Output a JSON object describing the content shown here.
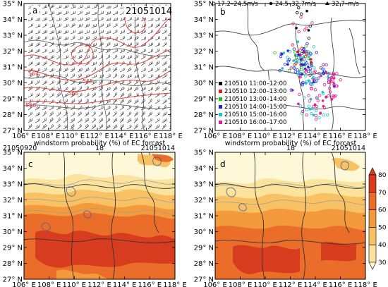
{
  "panel_a": {
    "label": "a",
    "date": "21051014",
    "contours": [
      "564",
      "565",
      "566",
      "566"
    ]
  },
  "panel_b": {
    "label": "b",
    "speed_legend": [
      "17.2–24.5m/s",
      "24.5–32.7m/s",
      "32.7–m/s"
    ],
    "time_legend": [
      {
        "text": "210510 11:00–12:00",
        "color": "#000000"
      },
      {
        "text": "210510 12:00–13:00",
        "color": "#e02020"
      },
      {
        "text": "210510 13:00–14:00",
        "color": "#20c020"
      },
      {
        "text": "210510 14:00–15:00",
        "color": "#2020e0"
      },
      {
        "text": "210510 15:00–16:00",
        "color": "#20c0d0"
      },
      {
        "text": "210510 16:00–17:00",
        "color": "#e02090"
      }
    ]
  },
  "panel_c": {
    "label": "c",
    "left_date": "21050920",
    "mid": "18",
    "right_date": "21051014",
    "title": "windstorm probability (%) of EC forcast"
  },
  "panel_d": {
    "label": "d",
    "left_date": "",
    "mid": "18",
    "right_date": "21051014",
    "title": "windstorm probability (%) of EC forcast"
  },
  "axes": {
    "lon_ticks": [
      "106° E",
      "108° E",
      "110° E",
      "112° E",
      "114° E",
      "116° E",
      "118° E"
    ],
    "lat_ticks": [
      "35° N",
      "34° N",
      "33° N",
      "32° N",
      "31° N",
      "30° N",
      "29° N",
      "28° N",
      "27° N"
    ]
  },
  "colorbar": {
    "levels": [
      "80",
      "70",
      "60",
      "50",
      "40",
      "30"
    ],
    "colors": [
      "#d73c1e",
      "#ea6d2a",
      "#f39a3c",
      "#f8c163",
      "#fbe39c",
      "#fff8d8"
    ]
  },
  "colors": {
    "contour": "#e03030",
    "border": "#333333"
  }
}
